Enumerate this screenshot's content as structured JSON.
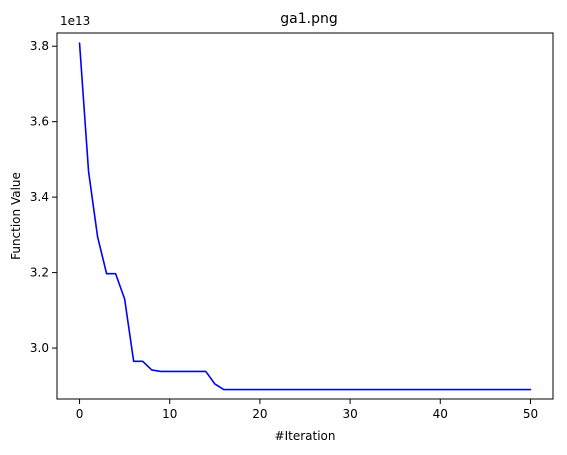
{
  "chart_data": {
    "type": "line",
    "title": "ga1.png",
    "xlabel": "#Iteration",
    "ylabel": "Function Value",
    "y_offset_label": "1e13",
    "xlim": [
      -2.5,
      52.5
    ],
    "ylim": [
      2.865,
      3.835
    ],
    "x_ticks": [
      0,
      10,
      20,
      30,
      40,
      50
    ],
    "y_ticks": [
      3.0,
      3.2,
      3.4,
      3.6,
      3.8
    ],
    "x_tick_labels": [
      "0",
      "10",
      "20",
      "30",
      "40",
      "50"
    ],
    "y_tick_labels": [
      "3.0",
      "3.2",
      "3.4",
      "3.6",
      "3.8"
    ],
    "grid": false,
    "series": [
      {
        "color": "#0000ff",
        "x": [
          0,
          1,
          2,
          3,
          4,
          5,
          6,
          7,
          8,
          9,
          10,
          11,
          12,
          13,
          14,
          15,
          16,
          17,
          18,
          19,
          20,
          21,
          22,
          23,
          24,
          25,
          26,
          27,
          28,
          29,
          30,
          31,
          32,
          33,
          34,
          35,
          36,
          37,
          38,
          39,
          40,
          41,
          42,
          43,
          44,
          45,
          46,
          47,
          48,
          49,
          50
        ],
        "values": [
          3.808,
          3.468,
          3.295,
          3.197,
          3.197,
          3.13,
          2.965,
          2.965,
          2.942,
          2.938,
          2.938,
          2.938,
          2.938,
          2.938,
          2.938,
          2.905,
          2.89,
          2.89,
          2.89,
          2.89,
          2.89,
          2.89,
          2.89,
          2.89,
          2.89,
          2.89,
          2.89,
          2.89,
          2.89,
          2.89,
          2.89,
          2.89,
          2.89,
          2.89,
          2.89,
          2.89,
          2.89,
          2.89,
          2.89,
          2.89,
          2.89,
          2.89,
          2.89,
          2.89,
          2.89,
          2.89,
          2.89,
          2.89,
          2.89,
          2.89,
          2.89
        ]
      }
    ]
  }
}
